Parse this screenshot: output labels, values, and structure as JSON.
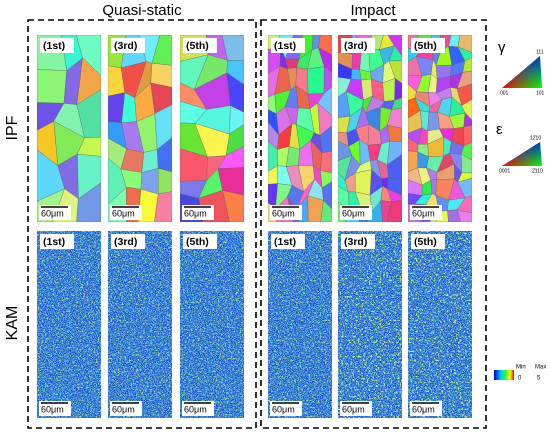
{
  "groups": [
    {
      "title": "Quasi-static",
      "panels": [
        "(1st)",
        "(3rd)",
        "(5th)"
      ]
    },
    {
      "title": "Impact",
      "panels": [
        "(1st)",
        "(3rd)",
        "(5th)"
      ]
    }
  ],
  "rows": [
    "IPF",
    "KAM"
  ],
  "scale_bar": "60μm",
  "ipf_legend": [
    {
      "phase": "γ",
      "corners": [
        "111",
        "001",
        "101"
      ]
    },
    {
      "phase": "ε",
      "corners": [
        "12̄10",
        "0001",
        "2̄110"
      ]
    }
  ],
  "kam_legend": {
    "min": "Min",
    "max": "Max",
    "min_value": "0",
    "max_value": "5"
  }
}
